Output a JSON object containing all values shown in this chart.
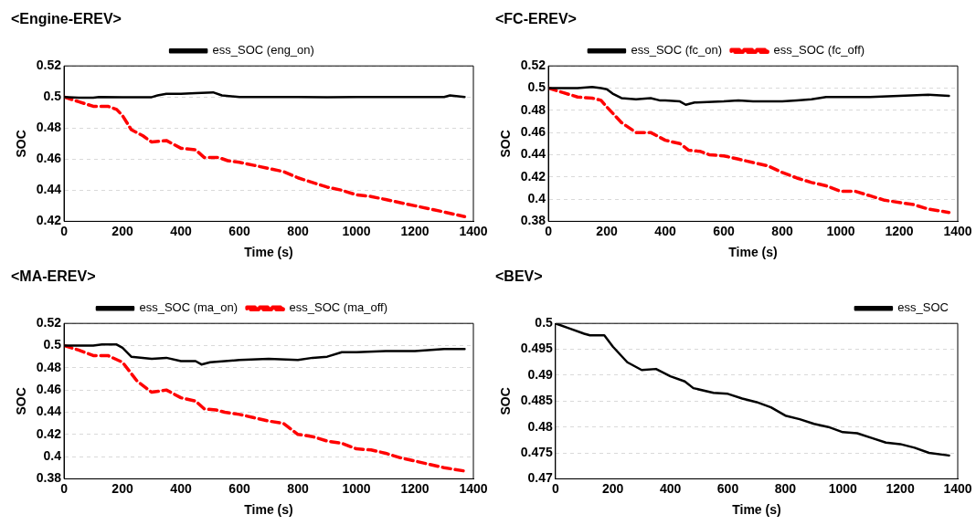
{
  "chart_data": [
    {
      "type": "line",
      "title": "<Engine-EREV>",
      "xlabel": "Time (s)",
      "ylabel": "SOC",
      "xlim": [
        0,
        1400
      ],
      "xticks": [
        0,
        200,
        400,
        600,
        800,
        1000,
        1200,
        1400
      ],
      "ylim": [
        0.42,
        0.52
      ],
      "yticks": [
        0.42,
        0.44,
        0.46,
        0.48,
        0.5,
        0.52
      ],
      "grid": "y",
      "legend": "top",
      "series": [
        {
          "name": "ess_SOC (eng_on)",
          "color": "#000000",
          "line_style": "solid",
          "x": [
            0,
            50,
            100,
            120,
            200,
            300,
            320,
            350,
            400,
            450,
            510,
            540,
            600,
            700,
            800,
            900,
            1000,
            1100,
            1200,
            1300,
            1320,
            1370
          ],
          "values": [
            0.5,
            0.4995,
            0.4995,
            0.5,
            0.4999,
            0.4999,
            0.501,
            0.502,
            0.502,
            0.5025,
            0.503,
            0.501,
            0.5,
            0.5,
            0.5,
            0.4998,
            0.5,
            0.5,
            0.5,
            0.5,
            0.501,
            0.5
          ]
        },
        {
          "color": "#ff0000",
          "line_style": "dashed",
          "x": [
            0,
            50,
            100,
            150,
            180,
            200,
            230,
            270,
            300,
            350,
            400,
            450,
            480,
            530,
            560,
            600,
            650,
            700,
            750,
            800,
            850,
            900,
            950,
            1000,
            1050,
            1100,
            1150,
            1200,
            1250,
            1300,
            1370
          ],
          "values": [
            0.5,
            0.497,
            0.494,
            0.494,
            0.492,
            0.488,
            0.479,
            0.475,
            0.471,
            0.472,
            0.467,
            0.466,
            0.461,
            0.461,
            0.459,
            0.458,
            0.456,
            0.454,
            0.452,
            0.448,
            0.445,
            0.442,
            0.44,
            0.437,
            0.436,
            0.434,
            0.432,
            0.43,
            0.428,
            0.426,
            0.423
          ]
        }
      ]
    },
    {
      "type": "line",
      "title": "<FC-EREV>",
      "xlabel": "Time (s)",
      "ylabel": "SOC",
      "xlim": [
        0,
        1400
      ],
      "xticks": [
        0,
        200,
        400,
        600,
        800,
        1000,
        1200,
        1400
      ],
      "ylim": [
        0.38,
        0.52
      ],
      "yticks": [
        0.38,
        0.4,
        0.42,
        0.44,
        0.46,
        0.48,
        0.5,
        0.52
      ],
      "grid": "y",
      "legend": "top",
      "series": [
        {
          "name": "ess_SOC (fc_on)",
          "color": "#000000",
          "line_style": "solid",
          "x": [
            0,
            50,
            100,
            150,
            180,
            200,
            220,
            250,
            300,
            350,
            380,
            400,
            450,
            470,
            500,
            600,
            650,
            700,
            800,
            850,
            900,
            950,
            1000,
            1100,
            1200,
            1300,
            1370
          ],
          "values": [
            0.5,
            0.5,
            0.5,
            0.501,
            0.5,
            0.499,
            0.495,
            0.491,
            0.49,
            0.491,
            0.489,
            0.489,
            0.488,
            0.485,
            0.487,
            0.488,
            0.489,
            0.488,
            0.488,
            0.489,
            0.49,
            0.492,
            0.492,
            0.492,
            0.493,
            0.494,
            0.493
          ]
        },
        {
          "name": "ess_SOC (fc_off)",
          "color": "#ff0000",
          "line_style": "dashed",
          "x": [
            0,
            50,
            100,
            150,
            180,
            200,
            250,
            300,
            350,
            400,
            450,
            480,
            520,
            550,
            600,
            650,
            700,
            750,
            800,
            850,
            900,
            950,
            1000,
            1050,
            1100,
            1150,
            1200,
            1250,
            1300,
            1370
          ],
          "values": [
            0.5,
            0.496,
            0.492,
            0.491,
            0.489,
            0.483,
            0.469,
            0.46,
            0.46,
            0.453,
            0.45,
            0.444,
            0.443,
            0.44,
            0.439,
            0.436,
            0.433,
            0.43,
            0.424,
            0.419,
            0.415,
            0.412,
            0.407,
            0.407,
            0.403,
            0.399,
            0.397,
            0.395,
            0.391,
            0.388
          ]
        }
      ]
    },
    {
      "type": "line",
      "title": "<MA-EREV>",
      "xlabel": "Time (s)",
      "ylabel": "SOC",
      "xlim": [
        0,
        1400
      ],
      "xticks": [
        0,
        200,
        400,
        600,
        800,
        1000,
        1200,
        1400
      ],
      "ylim": [
        0.38,
        0.52
      ],
      "yticks": [
        0.38,
        0.4,
        0.42,
        0.44,
        0.46,
        0.48,
        0.5,
        0.52
      ],
      "grid": "y",
      "legend": "top",
      "series": [
        {
          "name": "ess_SOC (ma_on)",
          "color": "#000000",
          "line_style": "solid",
          "x": [
            0,
            50,
            100,
            130,
            180,
            200,
            230,
            300,
            350,
            400,
            450,
            470,
            500,
            600,
            700,
            800,
            850,
            900,
            950,
            1000,
            1100,
            1200,
            1300,
            1370
          ],
          "values": [
            0.5,
            0.5,
            0.5,
            0.501,
            0.501,
            0.498,
            0.49,
            0.488,
            0.489,
            0.486,
            0.486,
            0.483,
            0.485,
            0.487,
            0.488,
            0.487,
            0.489,
            0.49,
            0.494,
            0.494,
            0.495,
            0.495,
            0.497,
            0.497
          ]
        },
        {
          "name": "ess_SOC (ma_off)",
          "color": "#ff0000",
          "line_style": "dashed",
          "x": [
            0,
            50,
            100,
            150,
            200,
            250,
            300,
            350,
            400,
            450,
            480,
            520,
            550,
            600,
            650,
            700,
            750,
            800,
            850,
            900,
            950,
            1000,
            1050,
            1100,
            1150,
            1200,
            1250,
            1300,
            1370
          ],
          "values": [
            0.5,
            0.496,
            0.491,
            0.491,
            0.485,
            0.468,
            0.458,
            0.46,
            0.453,
            0.45,
            0.443,
            0.442,
            0.44,
            0.438,
            0.435,
            0.432,
            0.43,
            0.42,
            0.418,
            0.414,
            0.412,
            0.407,
            0.406,
            0.403,
            0.399,
            0.396,
            0.393,
            0.39,
            0.387
          ]
        }
      ]
    },
    {
      "type": "line",
      "title": "<BEV>",
      "xlabel": "Time (s)",
      "ylabel": "SOC",
      "xlim": [
        0,
        1400
      ],
      "xticks": [
        0,
        200,
        400,
        600,
        800,
        1000,
        1200,
        1400
      ],
      "ylim": [
        0.47,
        0.5
      ],
      "yticks": [
        0.47,
        0.475,
        0.48,
        0.485,
        0.49,
        0.495,
        0.5
      ],
      "grid": "y",
      "legend": "top right",
      "series": [
        {
          "name": "ess_SOC",
          "color": "#000000",
          "line_style": "solid",
          "x": [
            0,
            50,
            100,
            120,
            170,
            200,
            250,
            300,
            350,
            400,
            450,
            480,
            550,
            600,
            650,
            700,
            750,
            800,
            850,
            900,
            950,
            1000,
            1050,
            1100,
            1150,
            1200,
            1250,
            1300,
            1370
          ],
          "values": [
            0.5,
            0.499,
            0.498,
            0.4977,
            0.4977,
            0.4955,
            0.4925,
            0.491,
            0.4912,
            0.4898,
            0.4888,
            0.4875,
            0.4866,
            0.4864,
            0.4855,
            0.4848,
            0.4838,
            0.4822,
            0.4815,
            0.4806,
            0.48,
            0.479,
            0.4788,
            0.4779,
            0.477,
            0.4767,
            0.476,
            0.475,
            0.4745
          ]
        }
      ]
    }
  ]
}
